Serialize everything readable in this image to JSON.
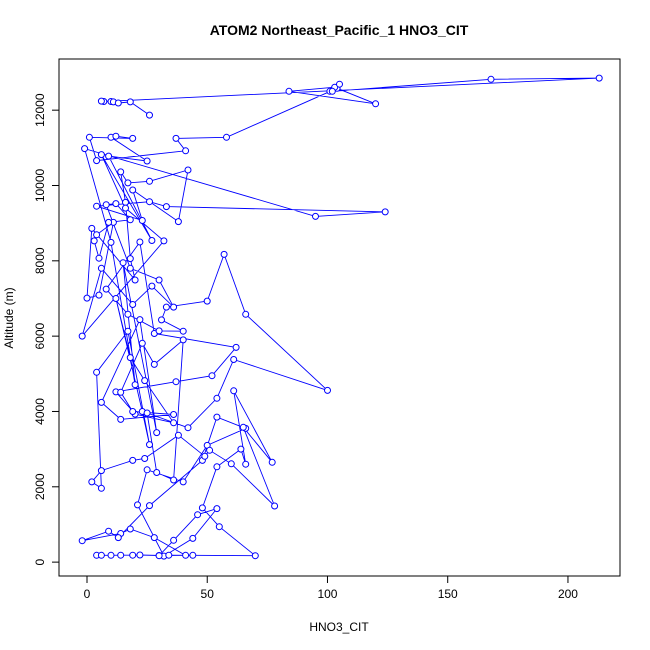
{
  "chart_data": {
    "type": "line",
    "title": "ATOM2 Northeast_Pacific_1 HNO3_CIT",
    "xlabel": "HNO3_CIT",
    "ylabel": "Altitude (m)",
    "xlim": [
      -3,
      213
    ],
    "ylim": [
      140,
      12850
    ],
    "xticks": [
      0,
      50,
      100,
      150,
      200
    ],
    "yticks": [
      0,
      2000,
      4000,
      6000,
      8000,
      10000,
      12000
    ],
    "grid": false,
    "legend": "none",
    "series_color": "#0000ff",
    "x": [
      4,
      6,
      10,
      14,
      19,
      22,
      30,
      41,
      28,
      18,
      14,
      -2,
      9,
      13,
      26,
      48,
      54,
      66,
      50,
      40,
      25,
      21,
      32,
      44,
      54,
      46,
      36,
      30,
      34,
      44,
      70,
      55,
      48,
      54,
      64,
      66,
      61,
      77,
      65,
      78,
      60,
      51,
      49,
      38,
      24,
      19,
      6,
      2,
      6,
      4,
      17,
      26,
      23,
      12,
      18,
      24,
      36,
      20,
      12,
      37,
      52,
      62,
      28,
      22,
      8,
      17,
      30,
      40,
      31,
      33,
      50,
      57,
      66,
      100,
      61,
      54,
      42,
      25,
      29,
      36,
      40,
      28,
      23,
      14,
      19,
      36,
      14,
      6,
      22,
      29,
      15,
      20,
      10,
      -1,
      95,
      124,
      33,
      26,
      4,
      23,
      19,
      38,
      42,
      26,
      17,
      14,
      16,
      18,
      20,
      2,
      0,
      5,
      11,
      4,
      3,
      5,
      9,
      18,
      12,
      8,
      18,
      30,
      36,
      27,
      19,
      6,
      -2,
      32,
      16,
      6,
      27,
      9,
      25,
      10,
      12,
      19,
      1,
      4,
      41,
      37,
      58,
      104,
      120,
      84,
      103,
      101,
      105,
      102,
      168,
      213,
      7,
      6,
      10,
      11,
      13,
      18,
      26
    ],
    "y": [
      180,
      180,
      180,
      185,
      185,
      190,
      175,
      180,
      650,
      880,
      760,
      570,
      820,
      650,
      1500,
      2700,
      3850,
      3550,
      3100,
      2130,
      2450,
      1520,
      160,
      630,
      1420,
      1260,
      580,
      170,
      185,
      180,
      170,
      940,
      1440,
      2530,
      3000,
      2600,
      4550,
      2650,
      3580,
      1490,
      2610,
      2970,
      2810,
      3370,
      2750,
      2700,
      2430,
      2130,
      1960,
      5040,
      6130,
      3120,
      4000,
      7000,
      5430,
      4820,
      3700,
      3930,
      4520,
      4790,
      4950,
      5700,
      6070,
      8500,
      7250,
      6580,
      6140,
      6130,
      6430,
      6770,
      6930,
      8170,
      6580,
      4560,
      5380,
      4350,
      3570,
      3960,
      2380,
      2180,
      5900,
      5250,
      5810,
      4510,
      4000,
      3920,
      3790,
      4240,
      6440,
      3440,
      7950,
      4710,
      8490,
      10980,
      9180,
      9300,
      9440,
      9570,
      9450,
      9070,
      9880,
      9040,
      10410,
      10110,
      10070,
      10360,
      9550,
      8060,
      7490,
      8860,
      7010,
      7090,
      9020,
      8690,
      8530,
      8070,
      9020,
      9090,
      9520,
      9490,
      7800,
      7490,
      6770,
      7330,
      6840,
      7800,
      6000,
      8530,
      9400,
      10820,
      8540,
      10780,
      10650,
      11280,
      11310,
      11250,
      11280,
      10660,
      10920,
      11250,
      11280,
      12580,
      12170,
      12500,
      12610,
      12500,
      12690,
      12500,
      12820,
      12850,
      12230,
      12240,
      12230,
      12220,
      12190,
      12220,
      11870
    ]
  }
}
